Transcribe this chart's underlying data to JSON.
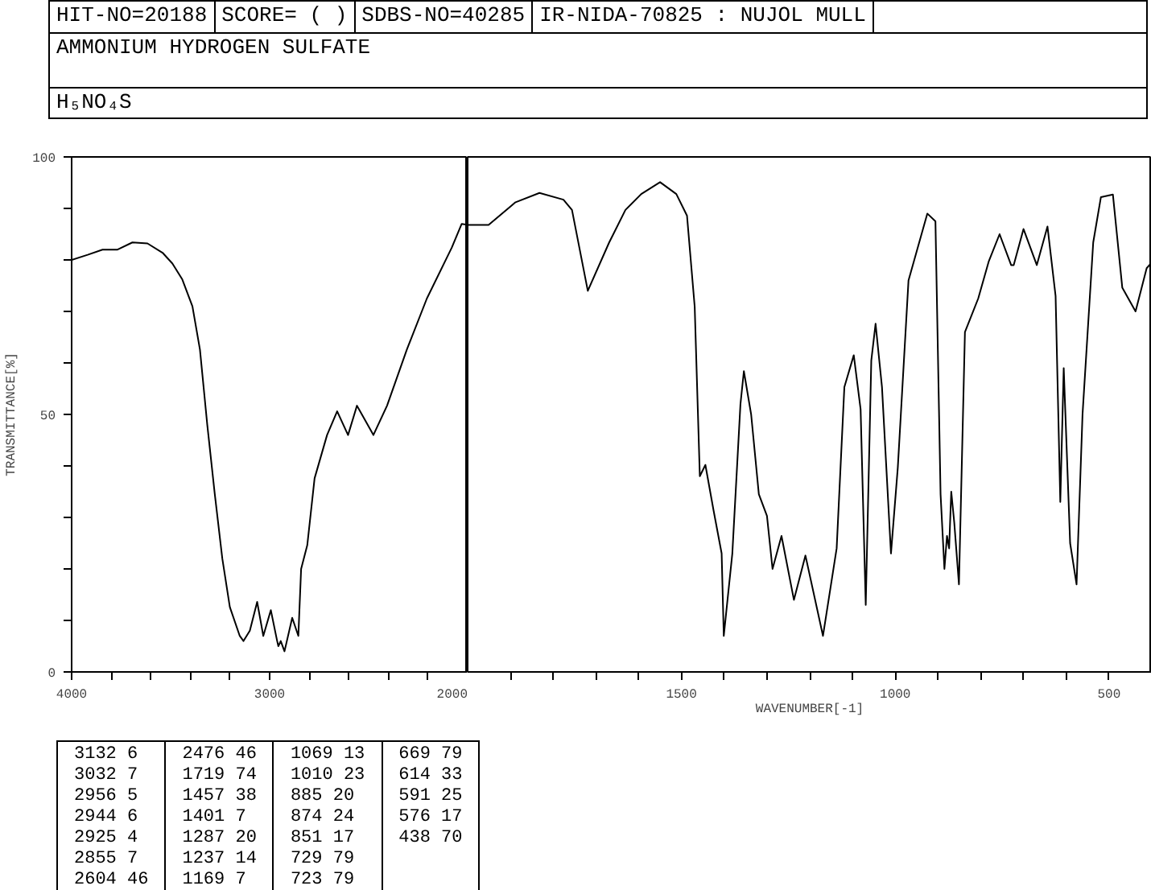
{
  "chart_data": [
    {
      "type": "other",
      "title": "AMMONIUM HYDROGEN SULFATE",
      "subtitle": "H₅NO₄S",
      "annotations": [
        "HIT-NO=20188",
        "SCORE= ( )",
        "SDBS-NO=40285",
        "IR-NIDA-70825 : NUJOL MULL"
      ]
    },
    {
      "type": "line",
      "ylabel": "TRANSMITTANCE[%]",
      "xlim": [
        4000,
        2000
      ],
      "ylim": [
        0,
        100
      ],
      "xticks": [
        4000,
        {
          "value": 3800,
          "label": null
        },
        {
          "value": 3600,
          "label": null
        },
        {
          "value": 3400,
          "label": null
        },
        {
          "value": 3200,
          "label": null
        },
        3000,
        {
          "value": 2800,
          "label": null
        },
        {
          "value": 2600,
          "label": null
        },
        {
          "value": 2400,
          "label": null
        },
        {
          "value": 2200,
          "label": null
        },
        2000
      ],
      "yticks": [
        0,
        {
          "value": 10,
          "label": null
        },
        {
          "value": 20,
          "label": null
        },
        {
          "value": 30,
          "label": null
        },
        {
          "value": 40,
          "label": null
        },
        50,
        {
          "value": 60,
          "label": null
        },
        {
          "value": 70,
          "label": null
        },
        {
          "value": 80,
          "label": null
        },
        {
          "value": 90,
          "label": null
        },
        100
      ],
      "x": [
        4000,
        3919,
        3844,
        3768,
        3693,
        3617,
        3541,
        3491,
        3441,
        3390,
        3352,
        3315,
        3277,
        3239,
        3201,
        3151,
        3132,
        3100,
        3063,
        3032,
        2994,
        2962,
        2956,
        2944,
        2925,
        2886,
        2855,
        2841,
        2810,
        2773,
        2710,
        2659,
        2604,
        2559,
        2476,
        2407,
        2307,
        2206,
        2080,
        2030,
        2000
      ],
      "series": [
        {
          "color": "#000000",
          "values": [
            80,
            81,
            82,
            82,
            83.4,
            83.2,
            81.4,
            79.3,
            76.2,
            71,
            62.6,
            48,
            34.5,
            22,
            12.6,
            7,
            6,
            8,
            13.6,
            7,
            12,
            6,
            5,
            6,
            4,
            10.5,
            7,
            20,
            24.6,
            37.6,
            46,
            50.6,
            46,
            51.7,
            46,
            51.7,
            62.6,
            72.5,
            82.4,
            87,
            86.8
          ]
        }
      ],
      "annotations": [
        "3132 6",
        "3032 7",
        "2956 5",
        "2944 6",
        "2925 4",
        "2855 7",
        "2604 46",
        "2476 46",
        "1719 74",
        "1457 38",
        "1401 7",
        "1287 20",
        "1237 14",
        "1169 7",
        "1069 13",
        "1010 23",
        "885 20",
        "874 24",
        "851 17",
        "729 79",
        "723 79",
        "669 79",
        "614 33",
        "591 25",
        "576 17",
        "438 70"
      ]
    },
    {
      "type": "line",
      "xlabel": "WAVENUMBER[-1]",
      "tick_labels": "x",
      "xlim": [
        2000,
        400
      ],
      "ylim": [
        0,
        100
      ],
      "xticks": [
        {
          "value": 1900,
          "label": null
        },
        {
          "value": 1800,
          "label": null
        },
        {
          "value": 1700,
          "label": null
        },
        {
          "value": 1600,
          "label": null
        },
        1500,
        {
          "value": 1400,
          "label": null
        },
        {
          "value": 1300,
          "label": null
        },
        {
          "value": 1200,
          "label": null
        },
        {
          "value": 1100,
          "label": null
        },
        1000,
        {
          "value": 900,
          "label": null
        },
        {
          "value": 800,
          "label": null
        },
        {
          "value": 700,
          "label": null
        },
        {
          "value": 600,
          "label": null
        },
        500
      ],
      "x": [
        2000,
        1951,
        1888,
        1832,
        1776,
        1756,
        1719,
        1669,
        1631,
        1594,
        1550,
        1512,
        1487,
        1469,
        1457,
        1444,
        1425,
        1406,
        1401,
        1381,
        1362,
        1354,
        1337,
        1319,
        1300,
        1287,
        1266,
        1237,
        1210,
        1169,
        1137,
        1119,
        1097,
        1081,
        1069,
        1056,
        1046,
        1031,
        1010,
        994,
        969,
        925,
        906,
        894,
        885,
        879,
        874,
        869,
        862,
        851,
        837,
        806,
        781,
        756,
        729,
        723,
        700,
        669,
        644,
        625,
        614,
        606,
        591,
        576,
        562,
        537,
        519,
        491,
        469,
        438,
        412,
        400
      ],
      "series": [
        {
          "color": "#000000",
          "values": [
            86.8,
            86.8,
            91.2,
            93,
            91.7,
            89.7,
            74,
            83.4,
            89.7,
            92.8,
            95.1,
            92.8,
            88.6,
            70.9,
            38,
            40.2,
            31.4,
            23,
            7,
            23,
            52,
            58.4,
            50,
            34.5,
            30.3,
            20,
            26.4,
            14,
            22.6,
            7,
            24,
            55.3,
            61.5,
            51,
            13,
            60.5,
            67.6,
            55.3,
            23,
            39.7,
            76,
            89,
            87.5,
            34.5,
            20,
            26.4,
            24,
            35,
            29,
            17,
            66,
            72.5,
            79.8,
            85,
            79,
            79,
            86,
            79,
            86.5,
            73,
            33,
            59,
            25,
            17,
            50,
            83.4,
            92.2,
            92.7,
            74.6,
            70,
            78.4,
            79.5
          ]
        }
      ]
    }
  ]
}
